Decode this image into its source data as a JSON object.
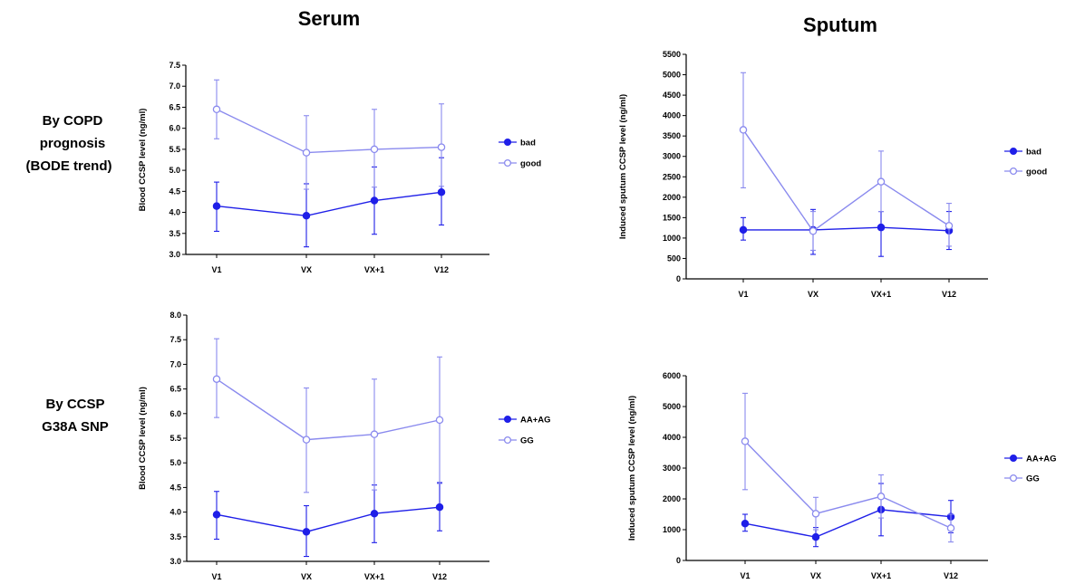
{
  "figure": {
    "column_titles": [
      "Serum",
      "Sputum"
    ],
    "row_labels": [
      [
        "By COPD",
        "prognosis",
        "(BODE trend)"
      ],
      [
        "By CCSP",
        "G38A SNP"
      ]
    ],
    "colors": {
      "series_a": "#1f1fe8",
      "series_b": "#8a8aee"
    }
  },
  "chart_data": [
    {
      "type": "line",
      "categories": [
        "V1",
        "VX",
        "VX+1",
        "V12"
      ],
      "ylabel": "Blood CCSP level (ng/ml)",
      "ylim": [
        3.0,
        7.5
      ],
      "yticks": [
        "3.0",
        "3.5",
        "4.0",
        "4.5",
        "5.0",
        "5.5",
        "6.0",
        "6.5",
        "7.0",
        "7.5"
      ],
      "series": [
        {
          "name": "bad",
          "marker": "filled",
          "values": [
            4.15,
            3.92,
            4.28,
            4.48
          ],
          "err_low": [
            3.55,
            3.18,
            3.48,
            3.7
          ],
          "err_high": [
            4.72,
            4.68,
            5.08,
            5.3
          ]
        },
        {
          "name": "good",
          "marker": "open",
          "values": [
            6.45,
            5.42,
            5.5,
            5.55
          ],
          "err_low": [
            5.75,
            4.55,
            4.6,
            4.62
          ],
          "err_high": [
            7.15,
            6.3,
            6.45,
            6.58
          ]
        }
      ]
    },
    {
      "type": "line",
      "categories": [
        "V1",
        "VX",
        "VX+1",
        "V12"
      ],
      "ylabel": "Induced sputum CCSP level (ng/ml)",
      "ylim": [
        0,
        5500
      ],
      "yticks": [
        "0",
        "500",
        "1000",
        "1500",
        "2000",
        "2500",
        "3000",
        "3500",
        "4000",
        "4500",
        "5000",
        "5500"
      ],
      "series": [
        {
          "name": "bad",
          "marker": "filled",
          "values": [
            1200,
            1200,
            1260,
            1180
          ],
          "err_low": [
            950,
            600,
            550,
            720
          ],
          "err_high": [
            1500,
            1700,
            1650,
            1650
          ]
        },
        {
          "name": "good",
          "marker": "open",
          "values": [
            3650,
            1170,
            2380,
            1300
          ],
          "err_low": [
            2230,
            700,
            1650,
            800
          ],
          "err_high": [
            5050,
            1650,
            3130,
            1850
          ]
        }
      ]
    },
    {
      "type": "line",
      "categories": [
        "V1",
        "VX",
        "VX+1",
        "V12"
      ],
      "ylabel": "Blood CCSP level (ng/ml)",
      "ylim": [
        3.0,
        8.0
      ],
      "yticks": [
        "3.0",
        "3.5",
        "4.0",
        "4.5",
        "5.0",
        "5.5",
        "6.0",
        "6.5",
        "7.0",
        "7.5",
        "8.0"
      ],
      "series": [
        {
          "name": "AA+AG",
          "marker": "filled",
          "values": [
            3.95,
            3.6,
            3.97,
            4.1
          ],
          "err_low": [
            3.45,
            3.1,
            3.38,
            3.62
          ],
          "err_high": [
            4.42,
            4.13,
            4.55,
            4.6
          ]
        },
        {
          "name": "GG",
          "marker": "open",
          "values": [
            6.7,
            5.47,
            5.58,
            5.87
          ],
          "err_low": [
            5.92,
            4.4,
            4.45,
            4.58
          ],
          "err_high": [
            7.52,
            6.52,
            6.7,
            7.15
          ]
        }
      ]
    },
    {
      "type": "line",
      "categories": [
        "V1",
        "VX",
        "VX+1",
        "V12"
      ],
      "ylabel": "Induced sputum CCSP level (ng/ml)",
      "ylim": [
        0,
        6000
      ],
      "yticks": [
        "0",
        "1000",
        "2000",
        "3000",
        "4000",
        "5000",
        "6000"
      ],
      "series": [
        {
          "name": "AA+AG",
          "marker": "filled",
          "values": [
            1200,
            760,
            1650,
            1420
          ],
          "err_low": [
            950,
            450,
            800,
            900
          ],
          "err_high": [
            1500,
            1070,
            2500,
            1950
          ]
        },
        {
          "name": "GG",
          "marker": "open",
          "values": [
            3870,
            1520,
            2080,
            1050
          ],
          "err_low": [
            2300,
            1000,
            1380,
            600
          ],
          "err_high": [
            5430,
            2050,
            2780,
            1500
          ]
        }
      ]
    }
  ]
}
